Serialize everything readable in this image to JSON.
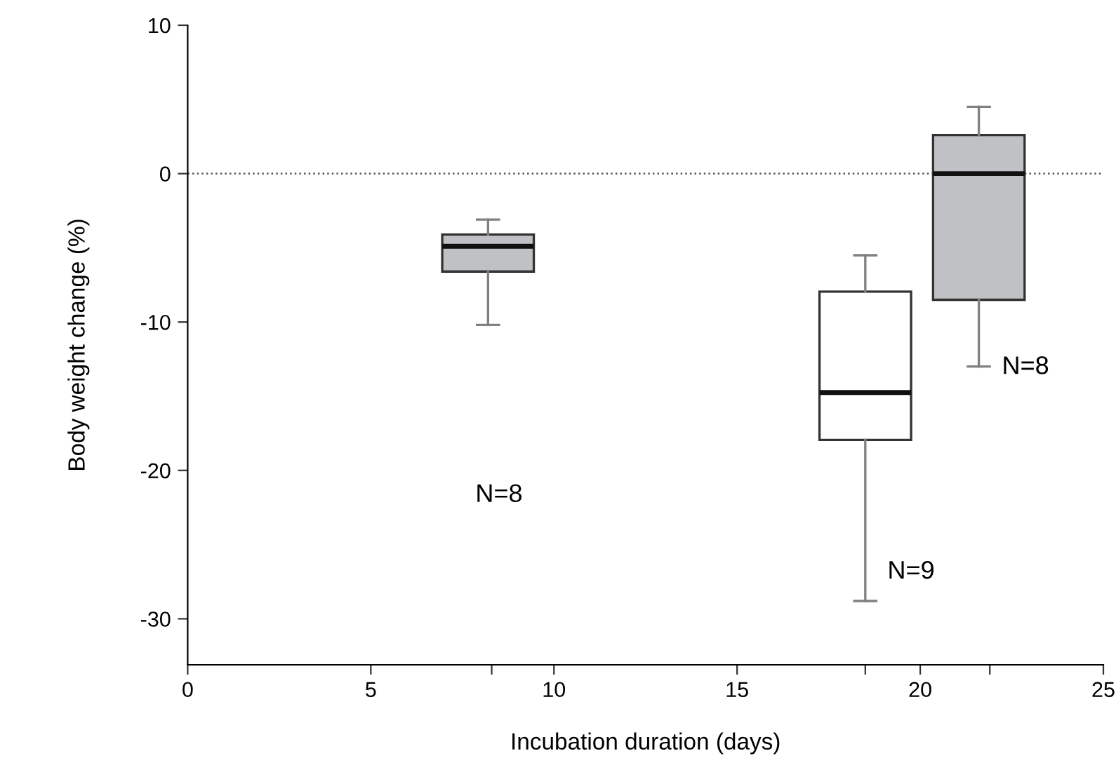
{
  "chart_data": {
    "type": "box",
    "xlabel": "Incubation duration (days)",
    "ylabel": "Body weight change (%)",
    "x": [
      8.2,
      18.5,
      21.6
    ],
    "boxes": [
      {
        "low": -10.2,
        "q1": -6.6,
        "median": -4.9,
        "q3": -4.1,
        "high": -3.1
      },
      {
        "low": -28.8,
        "q1": -17.95,
        "median": -14.75,
        "q3": -7.95,
        "high": -5.5
      },
      {
        "low": -13.0,
        "q1": -8.5,
        "median": 0,
        "q3": 2.6,
        "high": 4.5
      }
    ],
    "colors": [
      "#c0c1c4",
      "#ffffff",
      "#c0c1c4"
    ],
    "xlim": [
      0,
      25
    ],
    "ylim": [
      -33.1,
      10
    ],
    "xticks": [
      0,
      5,
      10,
      15,
      20,
      25,
      {
        "value": 8.3,
        "label": null
      },
      {
        "value": 18.5,
        "label": null
      },
      {
        "value": 21.9,
        "label": null
      }
    ],
    "yticks": [
      10,
      0,
      -10,
      -20,
      -30
    ],
    "ref_lines": [
      {
        "axis": "y",
        "value": 0,
        "line_style": "dotted",
        "color": "#555555"
      }
    ],
    "annotations": [
      "N=8",
      "N=9",
      "N=8"
    ],
    "grid": false,
    "legend": false
  }
}
